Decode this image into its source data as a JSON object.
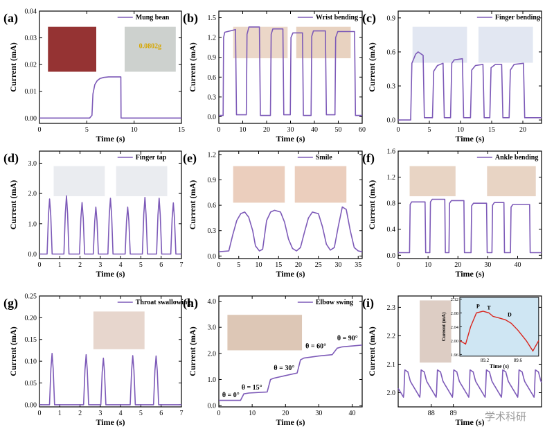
{
  "watermark": "学术科研",
  "chart_data": [
    {
      "type": "line",
      "panel": "(a)",
      "legend": "Mung bean",
      "xlabel": "Time (s)",
      "ylabel": "Current (mA)",
      "xlim": [
        0,
        15
      ],
      "ylim": [
        -0.002,
        0.04
      ],
      "xticks": [
        0,
        5,
        10,
        15
      ],
      "yticks": [
        0.0,
        0.01,
        0.02,
        0.03,
        0.04
      ],
      "ytick_labels": [
        "0.00",
        "0.01",
        "0.02",
        "0.03",
        "0.04"
      ],
      "inset_text": "0.0802g",
      "x": [
        0,
        5.3,
        5.55,
        5.65,
        5.85,
        6.1,
        6.4,
        6.8,
        7.3,
        8.0,
        8.6,
        8.62,
        15
      ],
      "y": [
        0,
        0,
        0.001,
        0.009,
        0.0125,
        0.014,
        0.0148,
        0.0152,
        0.0154,
        0.0154,
        0.0154,
        0,
        0
      ]
    },
    {
      "type": "line",
      "panel": "(b)",
      "legend": "Wrist bending",
      "xlabel": "Time (s)",
      "ylabel": "Current (mA)",
      "xlim": [
        0,
        60
      ],
      "ylim": [
        -0.1,
        1.6
      ],
      "xticks": [
        0,
        10,
        20,
        30,
        40,
        50,
        60
      ],
      "yticks": [
        0.0,
        0.3,
        0.6,
        0.9,
        1.2,
        1.5
      ],
      "ytick_labels": [
        "0.0",
        "0.3",
        "0.6",
        "0.9",
        "1.2",
        "1.5"
      ],
      "x": [
        0,
        1.8,
        2.0,
        2.5,
        7.0,
        7.4,
        11.5,
        11.8,
        12.6,
        17.0,
        17.4,
        21.6,
        21.9,
        22.6,
        26.8,
        27.2,
        29.9,
        30.2,
        31.0,
        35.0,
        35.4,
        38.6,
        38.9,
        39.6,
        44.6,
        45.0,
        48.6,
        48.9,
        49.8,
        56.8,
        57.2,
        60
      ],
      "y": [
        0.02,
        0.02,
        1.2,
        1.28,
        1.32,
        0.03,
        0.03,
        1.25,
        1.36,
        1.36,
        0.02,
        0.02,
        1.25,
        1.33,
        1.33,
        0.03,
        0.03,
        1.2,
        1.27,
        1.27,
        0.02,
        0.02,
        1.22,
        1.3,
        1.3,
        0.03,
        0.03,
        1.2,
        1.29,
        1.29,
        0.02,
        0.02
      ]
    },
    {
      "type": "line",
      "panel": "(c)",
      "legend": "Finger bending",
      "xlabel": "Time (s)",
      "ylabel": "Current (mA)",
      "xlim": [
        0,
        23
      ],
      "ylim": [
        -0.03,
        0.96
      ],
      "xticks": [
        0,
        5,
        10,
        15,
        20
      ],
      "yticks": [
        0.0,
        0.3,
        0.6,
        0.9
      ],
      "ytick_labels": [
        "0.0",
        "0.3",
        "0.6",
        "0.9"
      ],
      "x": [
        0,
        2.0,
        2.2,
        2.8,
        3.2,
        4.0,
        4.2,
        5.5,
        5.7,
        6.3,
        7.2,
        7.4,
        8.4,
        8.6,
        9.0,
        10.3,
        10.5,
        11.6,
        11.8,
        12.4,
        13.6,
        13.8,
        14.7,
        14.9,
        15.6,
        16.6,
        16.8,
        17.8,
        18.0,
        18.6,
        20.1,
        20.3,
        23
      ],
      "y": [
        0,
        0,
        0.5,
        0.58,
        0.6,
        0.57,
        0.02,
        0.02,
        0.43,
        0.48,
        0.5,
        0.02,
        0.02,
        0.5,
        0.53,
        0.54,
        0.02,
        0.02,
        0.44,
        0.48,
        0.49,
        0.02,
        0.02,
        0.46,
        0.49,
        0.49,
        0.02,
        0.02,
        0.44,
        0.49,
        0.5,
        0.02,
        0.02
      ]
    },
    {
      "type": "line",
      "panel": "(d)",
      "legend": "Finger tap",
      "xlabel": "Time (s)",
      "ylabel": "Current (mA)",
      "xlim": [
        0,
        7
      ],
      "ylim": [
        -0.15,
        3.4
      ],
      "xticks": [
        0,
        1,
        2,
        3,
        4,
        5,
        6,
        7
      ],
      "yticks": [
        0.0,
        1.0,
        2.0,
        3.0
      ],
      "ytick_labels": [
        "0.0",
        "1.0",
        "2.0",
        "3.0"
      ],
      "peaks": [
        [
          0.5,
          1.82
        ],
        [
          1.33,
          1.92
        ],
        [
          2.1,
          1.7
        ],
        [
          2.78,
          1.55
        ],
        [
          3.5,
          1.84
        ],
        [
          4.35,
          1.55
        ],
        [
          5.2,
          1.87
        ],
        [
          5.9,
          1.84
        ],
        [
          6.6,
          1.69
        ]
      ]
    },
    {
      "type": "line",
      "panel": "(e)",
      "legend": "Smile",
      "xlabel": "Time (s)",
      "ylabel": "Current (mA)",
      "xlim": [
        0,
        36
      ],
      "ylim": [
        -0.03,
        1.24
      ],
      "xticks": [
        0,
        5,
        10,
        15,
        20,
        25,
        30,
        35
      ],
      "yticks": [
        0.0,
        0.3,
        0.6,
        0.9,
        1.2
      ],
      "ytick_labels": [
        "0.0",
        "0.3",
        "0.6",
        "0.9",
        "1.2"
      ],
      "x": [
        0,
        2.5,
        3.5,
        4.5,
        5.5,
        6.5,
        7.5,
        8.5,
        9.2,
        10.2,
        11.0,
        12.0,
        13.0,
        14.0,
        15.5,
        16.5,
        17.5,
        18.5,
        19.5,
        20.5,
        21.5,
        22.5,
        23.5,
        25.0,
        26.0,
        27.0,
        28.0,
        29.0,
        30.0,
        31.0,
        32.0,
        33.0,
        34.0,
        35.0,
        36.0
      ],
      "y": [
        0.05,
        0.06,
        0.25,
        0.42,
        0.5,
        0.52,
        0.46,
        0.3,
        0.12,
        0.06,
        0.08,
        0.42,
        0.52,
        0.54,
        0.52,
        0.4,
        0.2,
        0.09,
        0.06,
        0.1,
        0.28,
        0.45,
        0.52,
        0.5,
        0.35,
        0.14,
        0.07,
        0.1,
        0.35,
        0.58,
        0.55,
        0.3,
        0.1,
        0.06,
        0.05
      ]
    },
    {
      "type": "line",
      "panel": "(f)",
      "legend": "Ankle bending",
      "xlabel": "Time (s)",
      "ylabel": "Current (mA)",
      "xlim": [
        0,
        48
      ],
      "ylim": [
        -0.05,
        1.6
      ],
      "xticks": [
        0,
        10,
        20,
        30,
        40
      ],
      "yticks": [
        0.0,
        0.4,
        0.8,
        1.2,
        1.6
      ],
      "ytick_labels": [
        "0.0",
        "0.4",
        "0.8",
        "1.2",
        "1.6"
      ],
      "x": [
        0,
        3.8,
        4.0,
        4.5,
        9.0,
        9.2,
        10.6,
        10.8,
        11.4,
        15.6,
        15.8,
        17.0,
        17.2,
        17.8,
        22.0,
        22.2,
        24.4,
        24.6,
        25.2,
        29.6,
        29.8,
        31.4,
        31.6,
        32.2,
        35.4,
        35.6,
        37.6,
        37.8,
        38.4,
        44.0,
        44.2,
        48
      ],
      "y": [
        0.04,
        0.04,
        0.78,
        0.82,
        0.82,
        0.04,
        0.04,
        0.82,
        0.86,
        0.86,
        0.04,
        0.04,
        0.8,
        0.84,
        0.84,
        0.04,
        0.04,
        0.76,
        0.8,
        0.8,
        0.04,
        0.04,
        0.77,
        0.81,
        0.81,
        0.04,
        0.04,
        0.74,
        0.78,
        0.78,
        0.04,
        0.04
      ]
    },
    {
      "type": "line",
      "panel": "(g)",
      "legend": "Throat swallowing",
      "xlabel": "Time (s)",
      "ylabel": "Current (mA)",
      "xlim": [
        0,
        7
      ],
      "ylim": [
        -0.005,
        0.25
      ],
      "xticks": [
        0,
        1,
        2,
        3,
        4,
        5,
        6,
        7
      ],
      "yticks": [
        0.0,
        0.05,
        0.1,
        0.15,
        0.2,
        0.25
      ],
      "ytick_labels": [
        "0.00",
        "0.05",
        "0.10",
        "0.15",
        "0.20",
        "0.25"
      ],
      "peaks": [
        [
          0.62,
          0.118
        ],
        [
          2.3,
          0.115
        ],
        [
          3.15,
          0.107
        ],
        [
          4.6,
          0.113
        ],
        [
          5.75,
          0.112
        ]
      ]
    },
    {
      "type": "line",
      "panel": "(h)",
      "legend": "Elbow swing",
      "xlabel": "Time (s)",
      "ylabel": "Current (mA)",
      "xlim": [
        0,
        43
      ],
      "ylim": [
        -0.05,
        4.2
      ],
      "xticks": [
        0,
        10,
        20,
        30,
        40
      ],
      "yticks": [
        0.0,
        1.0,
        2.0,
        3.0,
        4.0
      ],
      "ytick_labels": [
        "0.0",
        "1.0",
        "2.0",
        "3.0",
        "4.0"
      ],
      "annotations": [
        "θ = 0°",
        "θ = 15°",
        "θ = 30°",
        "θ = 60°",
        "θ = 90°"
      ],
      "x": [
        0,
        6.5,
        7.5,
        9,
        14.5,
        15.5,
        16.5,
        20,
        23.5,
        24.5,
        25.5,
        30,
        34,
        35.5,
        37,
        43
      ],
      "y": [
        0.2,
        0.2,
        0.45,
        0.48,
        0.52,
        1.0,
        1.05,
        1.15,
        1.25,
        1.75,
        1.82,
        1.9,
        1.95,
        2.2,
        2.25,
        2.32
      ]
    },
    {
      "type": "line",
      "panel": "(i)",
      "xlabel": "Time (s)",
      "ylabel": "Current (mA)",
      "xlim": [
        86.5,
        93
      ],
      "ylim": [
        1.95,
        2.34
      ],
      "xticks": [
        88,
        89
      ],
      "yticks": [
        2.0,
        2.1,
        2.2,
        2.3
      ],
      "xtick_labels": [
        "88",
        "89"
      ],
      "ytick_labels": [
        "2.0",
        "2.1",
        "2.2",
        "2.3"
      ],
      "inset": {
        "xlabel": "Time (s)",
        "ylabel": "Current (mA)",
        "xticks": [
          89.2,
          89.6
        ],
        "yticks": [
          1.96,
          2.0,
          2.04,
          2.08,
          2.12
        ],
        "xtick_labels": [
          "89.2",
          "89.6"
        ],
        "ytick_labels": [
          "1.96",
          "2.00",
          "2.04",
          "2.08",
          "2.12"
        ],
        "labels": [
          "P",
          "T",
          "D"
        ]
      }
    }
  ]
}
